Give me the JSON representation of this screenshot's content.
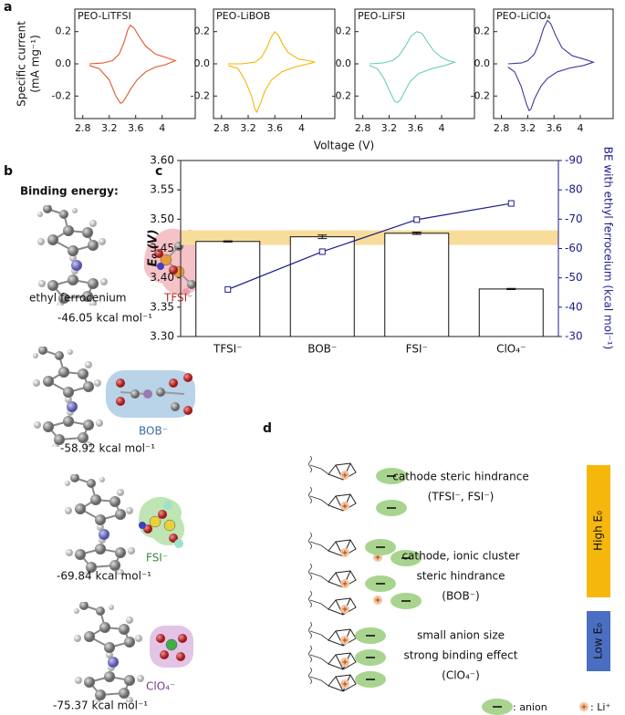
{
  "panel_labels": [
    "a",
    "b",
    "c",
    "d"
  ],
  "chart_data": [
    {
      "type": "line",
      "title": "PEO-LiTFSI",
      "color": "#e0562a",
      "xlabel": "Voltage (V)",
      "ylabel": [
        "Specific current",
        "(mA mg⁻¹)"
      ],
      "x": [
        2.9,
        3.1,
        3.25,
        3.35,
        3.42,
        3.48,
        3.52,
        3.58,
        3.65,
        3.75,
        3.9,
        4.05,
        4.2,
        4.05,
        3.9,
        3.75,
        3.62,
        3.52,
        3.45,
        3.4,
        3.37,
        3.3,
        3.2,
        3.05,
        2.9
      ],
      "values": [
        0,
        0.005,
        0.02,
        0.06,
        0.13,
        0.21,
        0.24,
        0.22,
        0.17,
        0.11,
        0.06,
        0.04,
        0.02,
        -0.005,
        -0.02,
        -0.05,
        -0.1,
        -0.16,
        -0.21,
        -0.24,
        -0.245,
        -0.2,
        -0.1,
        -0.03,
        -0.01
      ],
      "xlim": [
        2.68,
        4.5
      ],
      "xticks": [
        2.8,
        3.2,
        3.6,
        4.0
      ],
      "ylim": [
        -0.34,
        0.34
      ],
      "yticks": [
        -0.2,
        {
          "value": 0,
          "label": "0.0"
        },
        0.2
      ]
    },
    {
      "type": "line",
      "title": "PEO-LiBOB",
      "color": "#f2b705",
      "x": [
        2.9,
        3.1,
        3.3,
        3.4,
        3.48,
        3.55,
        3.6,
        3.65,
        3.72,
        3.8,
        3.95,
        4.1,
        4.2,
        4.05,
        3.9,
        3.7,
        3.55,
        3.45,
        3.38,
        3.33,
        3.3,
        3.25,
        3.15,
        3.05,
        2.9
      ],
      "values": [
        0,
        0,
        0.01,
        0.04,
        0.1,
        0.17,
        0.2,
        0.18,
        0.12,
        0.07,
        0.03,
        0.02,
        0.01,
        -0.005,
        -0.02,
        -0.05,
        -0.1,
        -0.17,
        -0.25,
        -0.3,
        -0.28,
        -0.2,
        -0.1,
        -0.03,
        -0.01
      ],
      "xlim": [
        2.68,
        4.5
      ],
      "xticks": [
        2.8,
        3.2,
        3.6,
        4.0
      ],
      "ylim": [
        -0.34,
        0.34
      ],
      "yticks": [
        -0.2,
        {
          "value": 0,
          "label": "0.0"
        },
        0.2
      ]
    },
    {
      "type": "line",
      "title": "PEO-LiFSI",
      "color": "#6ccfb0",
      "x": [
        2.9,
        3.1,
        3.25,
        3.35,
        3.45,
        3.53,
        3.62,
        3.7,
        3.78,
        3.88,
        4.0,
        4.1,
        4.2,
        4.05,
        3.85,
        3.65,
        3.52,
        3.44,
        3.38,
        3.33,
        3.28,
        3.22,
        3.12,
        3.02,
        2.9
      ],
      "values": [
        0,
        0.005,
        0.02,
        0.05,
        0.11,
        0.17,
        0.2,
        0.19,
        0.14,
        0.08,
        0.04,
        0.02,
        0.01,
        -0.01,
        -0.03,
        -0.06,
        -0.11,
        -0.17,
        -0.22,
        -0.24,
        -0.23,
        -0.18,
        -0.09,
        -0.03,
        -0.01
      ],
      "xlim": [
        2.68,
        4.5
      ],
      "xticks": [
        2.8,
        3.2,
        3.6,
        4.0
      ],
      "ylim": [
        -0.34,
        0.34
      ],
      "yticks": [
        -0.2,
        {
          "value": 0,
          "label": "0.0"
        },
        0.2
      ]
    },
    {
      "type": "line",
      "title": "PEO-LiClO₄",
      "color": "#3b3a9a",
      "x": [
        2.9,
        3.1,
        3.2,
        3.3,
        3.38,
        3.44,
        3.5,
        3.55,
        3.62,
        3.72,
        3.88,
        4.05,
        4.2,
        4.05,
        3.85,
        3.65,
        3.5,
        3.4,
        3.3,
        3.25,
        3.22,
        3.18,
        3.1,
        3.0,
        2.9
      ],
      "values": [
        0,
        0.005,
        0.02,
        0.06,
        0.14,
        0.22,
        0.27,
        0.25,
        0.18,
        0.1,
        0.05,
        0.03,
        0.01,
        -0.01,
        -0.025,
        -0.05,
        -0.09,
        -0.14,
        -0.22,
        -0.28,
        -0.29,
        -0.25,
        -0.14,
        -0.05,
        -0.02
      ],
      "xlim": [
        2.68,
        4.5
      ],
      "xticks": [
        2.8,
        3.2,
        3.6,
        4.0
      ],
      "ylim": [
        -0.34,
        0.34
      ],
      "yticks": [
        -0.2,
        {
          "value": 0,
          "label": "0.0"
        },
        0.2
      ]
    },
    {
      "type": "bar",
      "ylabel": "E₀ (V)",
      "y2label": "BE with ethyl ferroceium (kcal mol⁻¹)",
      "categories": [
        "TFSI⁻",
        "BOB⁻",
        "FSI⁻",
        "ClO₄⁻"
      ],
      "series": [
        {
          "type": "bar",
          "color": "#ffffff",
          "values": [
            3.462,
            3.47,
            3.476,
            3.381
          ],
          "errors": [
            0.001,
            0.003,
            0.002,
            0.001
          ]
        },
        {
          "type": "line",
          "axis": "y2",
          "color": "#1c1c8a",
          "values": [
            -46.05,
            -58.92,
            -69.84,
            -75.37
          ]
        }
      ],
      "highlight_band": {
        "range": [
          3.456,
          3.481
        ],
        "color": "#f8dc9a"
      },
      "ylim": [
        3.3,
        3.6
      ],
      "yticks": [
        {
          "value": 3.3,
          "label": "3.30"
        },
        3.35,
        {
          "value": 3.4,
          "label": "3.40"
        },
        3.45,
        {
          "value": 3.5,
          "label": "3.50"
        },
        3.55,
        {
          "value": 3.6,
          "label": "3.60"
        }
      ],
      "y2lim": [
        -30,
        -90
      ],
      "y2ticks": [
        -30,
        -40,
        -50,
        -60,
        -70,
        -80,
        -90
      ]
    }
  ],
  "binding": {
    "title": "Binding energy:",
    "cation": "ethyl ferrocenium",
    "entries": [
      {
        "anion": "TFSI⁻",
        "energy": "-46.05 kcal mol⁻¹"
      },
      {
        "anion": "BOB⁻",
        "energy": "-58.92 kcal mol⁻¹"
      },
      {
        "anion": "FSI⁻",
        "energy": "-69.84 kcal mol⁻¹"
      },
      {
        "anion": "ClO₄⁻",
        "energy": "-75.37 kcal mol⁻¹"
      }
    ]
  },
  "scheme": {
    "groups": [
      {
        "lines": [
          "cathode steric hindrance",
          "(TFSI⁻, FSI⁻)"
        ]
      },
      {
        "lines": [
          "cathode, ionic cluster",
          "steric hindrance",
          "(BOB⁻)"
        ]
      },
      {
        "lines": [
          "small anion size",
          "strong binding effect",
          "(ClO₄⁻)"
        ]
      }
    ],
    "high": "High E₀",
    "low": "Low E₀",
    "legend": [
      ": anion",
      ": Li⁺"
    ]
  }
}
